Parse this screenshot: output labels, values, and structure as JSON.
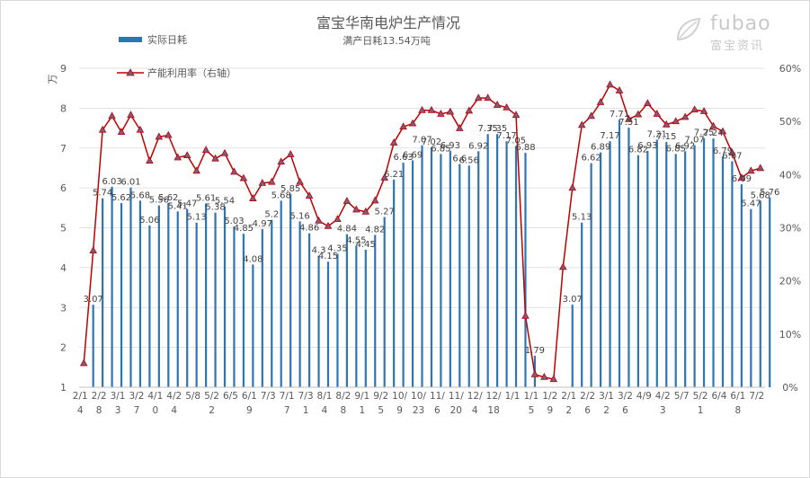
{
  "logo": {
    "text": "fubao",
    "subtext": "富宝资讯"
  },
  "chart_data": {
    "type": "bar+line",
    "title": "富宝华南电炉生产情况",
    "subtitle": "满产日耗13.54万吨",
    "y_left_unit": "万",
    "y_left_ticks": [
      "1",
      "2",
      "3",
      "4",
      "5",
      "6",
      "7",
      "8",
      "9"
    ],
    "y_left_range": [
      1,
      9
    ],
    "y_right_ticks": [
      "0%",
      "10%",
      "20%",
      "30%",
      "40%",
      "50%",
      "60%"
    ],
    "y_right_range": [
      0,
      60
    ],
    "legend": [
      "实际日耗",
      "产能利用率（右轴）"
    ],
    "colors": {
      "bar": "#2e75b6",
      "line": "#c00000",
      "marker": "#7f5a83",
      "label": "#404040",
      "axis": "#595959",
      "grid": "#d9d9d9"
    },
    "x_labels": [
      [
        "2/1",
        "4"
      ],
      [
        "2/2",
        "8"
      ],
      [
        "3/1",
        "3"
      ],
      [
        "3/2",
        "7"
      ],
      [
        "4/1",
        "0"
      ],
      [
        "4/2",
        "4"
      ],
      [
        "5/8",
        ""
      ],
      [
        "5/2",
        "2"
      ],
      [
        "6/5",
        ""
      ],
      [
        "6/1",
        "9"
      ],
      [
        "7/3",
        ""
      ],
      [
        "7/1",
        "7"
      ],
      [
        "7/3",
        "1"
      ],
      [
        "8/1",
        "4"
      ],
      [
        "8/2",
        "8"
      ],
      [
        "9/1",
        "1"
      ],
      [
        "9/2",
        "5"
      ],
      [
        "10/",
        "9"
      ],
      [
        "10/",
        "23"
      ],
      [
        "11/",
        "6"
      ],
      [
        "11/",
        "20"
      ],
      [
        "12/",
        "4"
      ],
      [
        "12/",
        "18"
      ],
      [
        "1/1",
        ""
      ],
      [
        "1/1",
        "5"
      ],
      [
        "1/2",
        "9"
      ],
      [
        "2/1",
        "2"
      ],
      [
        "2/2",
        "6"
      ],
      [
        "3/1",
        "2"
      ],
      [
        "3/2",
        "6"
      ],
      [
        "4/9",
        ""
      ],
      [
        "4/2",
        "3"
      ],
      [
        "5/7",
        ""
      ],
      [
        "5/2",
        "1"
      ],
      [
        "6/4",
        ""
      ],
      [
        "6/1",
        "8"
      ],
      [
        "7/2",
        ""
      ]
    ],
    "bars": [
      {
        "v": 3.07,
        "l": "3.07"
      },
      {
        "v": 5.74,
        "l": "5.74"
      },
      {
        "v": 6.03,
        "l": "6.03"
      },
      {
        "v": 5.62,
        "l": "5.62"
      },
      {
        "v": 6.01,
        "l": "6.01"
      },
      {
        "v": 5.68,
        "l": "5.68"
      },
      {
        "v": 5.06,
        "l": "5.06"
      },
      {
        "v": 5.56,
        "l": "5.56"
      },
      {
        "v": 5.62,
        "l": "5.62"
      },
      {
        "v": 5.41,
        "l": "5.41"
      },
      {
        "v": 5.47,
        "l": "5.47"
      },
      {
        "v": 5.13,
        "l": "5.13"
      },
      {
        "v": 5.61,
        "l": "5.61"
      },
      {
        "v": 5.38,
        "l": "5.38"
      },
      {
        "v": 5.54,
        "l": "5.54"
      },
      {
        "v": 5.03,
        "l": "5.03"
      },
      {
        "v": 4.85,
        "l": "4.85"
      },
      {
        "v": 4.08,
        "l": "4.08"
      },
      {
        "v": 4.97,
        "l": "4.97"
      },
      {
        "v": 5.2,
        "l": "5.2"
      },
      {
        "v": 5.68,
        "l": "5.68"
      },
      {
        "v": 5.85,
        "l": "5.85"
      },
      {
        "v": 5.16,
        "l": "5.16"
      },
      {
        "v": 4.86,
        "l": "4.86"
      },
      {
        "v": 4.3,
        "l": "4.3"
      },
      {
        "v": 4.15,
        "l": "4.15"
      },
      {
        "v": 4.35,
        "l": "4.35"
      },
      {
        "v": 4.84,
        "l": "4.84"
      },
      {
        "v": 4.55,
        "l": "4.55"
      },
      {
        "v": 4.45,
        "l": "4.45"
      },
      {
        "v": 4.82,
        "l": "4.82"
      },
      {
        "v": 5.27,
        "l": "5.27"
      },
      {
        "v": 6.21,
        "l": "6.21"
      },
      {
        "v": 6.63,
        "l": "6.63"
      },
      {
        "v": 6.69,
        "l": "6.69"
      },
      {
        "v": 7.07,
        "l": "7.07"
      },
      {
        "v": 7.02,
        "l": "7.02"
      },
      {
        "v": 6.85,
        "l": "6.85"
      },
      {
        "v": 6.93,
        "l": "6.93"
      },
      {
        "v": 6.6,
        "l": "6.6"
      },
      {
        "v": 6.56,
        "l": "6.56"
      },
      {
        "v": 6.92,
        "l": "6.92"
      },
      {
        "v": 7.35,
        "l": "7.35"
      },
      {
        "v": 7.35,
        "l": "7.35"
      },
      {
        "v": 7.17,
        "l": "7.17"
      },
      {
        "v": 7.05,
        "l": "7.05"
      },
      {
        "v": 6.88,
        "l": "6.88"
      },
      {
        "v": 1.79,
        "l": "1.79"
      },
      {
        "v": 3.07,
        "l": "3.07"
      },
      {
        "v": 5.13,
        "l": "5.13"
      },
      {
        "v": 6.62,
        "l": "6.62"
      },
      {
        "v": 6.89,
        "l": "6.89"
      },
      {
        "v": 7.17,
        "l": "7.17"
      },
      {
        "v": 7.71,
        "l": "7.71"
      },
      {
        "v": 7.51,
        "l": "7.51"
      },
      {
        "v": 6.82,
        "l": "6.82"
      },
      {
        "v": 6.93,
        "l": "6.93"
      },
      {
        "v": 7.21,
        "l": "7.21"
      },
      {
        "v": 7.15,
        "l": "7.15"
      },
      {
        "v": 6.85,
        "l": "6.85"
      },
      {
        "v": 6.92,
        "l": "6.92"
      },
      {
        "v": 7.07,
        "l": "7.07"
      },
      {
        "v": 7.25,
        "l": "7.25"
      },
      {
        "v": 7.24,
        "l": "7.24"
      },
      {
        "v": 6.79,
        "l": "6.79"
      },
      {
        "v": 6.67,
        "l": "6.67"
      },
      {
        "v": 6.09,
        "l": "6.09"
      },
      {
        "v": 5.47,
        "l": "5.47"
      },
      {
        "v": 5.68,
        "l": "5.68"
      },
      {
        "v": 5.76,
        "l": "5.76"
      }
    ],
    "bar_slots": [
      1,
      2,
      3,
      4,
      5,
      6,
      7,
      8,
      9,
      10,
      11,
      12,
      13,
      14,
      15,
      16,
      17,
      18,
      19,
      20,
      21,
      22,
      23,
      24,
      25,
      26,
      27,
      28,
      29,
      30,
      31,
      32,
      33,
      34,
      35,
      36,
      37,
      38,
      39,
      40,
      41,
      42,
      43,
      44,
      45,
      46,
      47,
      48,
      52,
      53,
      54,
      55,
      56,
      57,
      58,
      59,
      60,
      61,
      62,
      63,
      64,
      65,
      66,
      67,
      68,
      69,
      70,
      71,
      72,
      73
    ],
    "line_percent": [
      4.5,
      25.7,
      48.4,
      51.0,
      48.0,
      51.2,
      48.4,
      42.6,
      47.1,
      47.4,
      43.2,
      43.6,
      40.7,
      44.6,
      43.0,
      44.0,
      40.5,
      39.3,
      35.5,
      38.4,
      38.6,
      42.4,
      43.8,
      38.6,
      36.0,
      31.3,
      30.3,
      31.6,
      35.0,
      33.4,
      33.0,
      35.1,
      39.4,
      46.0,
      49.0,
      49.6,
      52.1,
      52.1,
      51.4,
      51.8,
      48.7,
      52.0,
      54.4,
      54.4,
      53.1,
      52.6,
      51.2,
      13.4,
      2.4,
      1.9,
      1.5,
      22.6,
      37.5,
      49.3,
      51.0,
      53.6,
      56.9,
      55.8,
      50.4,
      51.3,
      53.4,
      51.4,
      49.4,
      50.0,
      50.8,
      52.2,
      51.9,
      49.1,
      48.1,
      44.1,
      39.4,
      40.7,
      41.2
    ]
  }
}
